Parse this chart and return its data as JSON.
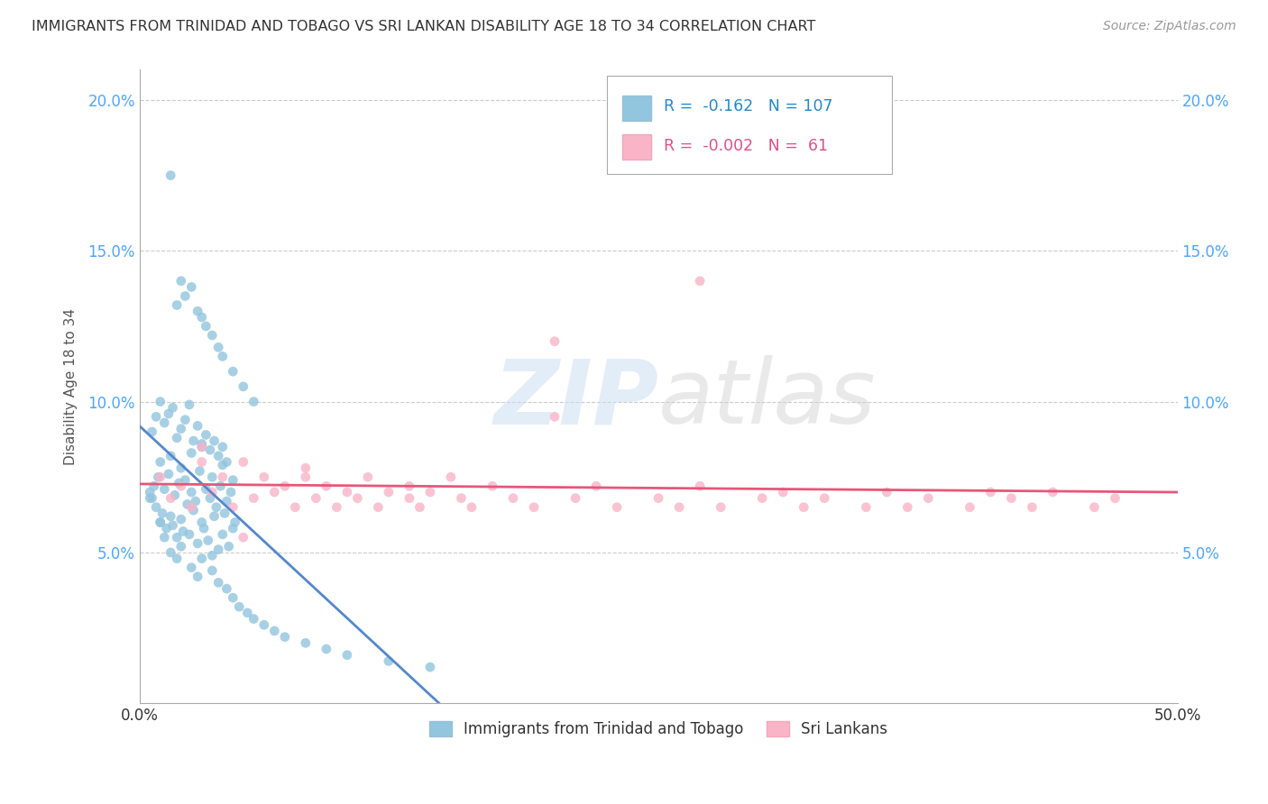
{
  "title": "IMMIGRANTS FROM TRINIDAD AND TOBAGO VS SRI LANKAN DISABILITY AGE 18 TO 34 CORRELATION CHART",
  "source": "Source: ZipAtlas.com",
  "ylabel": "Disability Age 18 to 34",
  "xlim": [
    0.0,
    0.5
  ],
  "ylim": [
    0.0,
    0.21
  ],
  "xticks": [
    0.0,
    0.5
  ],
  "xticklabels": [
    "0.0%",
    "50.0%"
  ],
  "yticks": [
    0.05,
    0.1,
    0.15,
    0.2
  ],
  "yticklabels": [
    "5.0%",
    "10.0%",
    "15.0%",
    "20.0%"
  ],
  "color_blue": "#92c5de",
  "color_pink": "#f9b4c8",
  "trend_blue_solid_color": "#5588cc",
  "trend_pink_solid_color": "#e8567a",
  "title_color": "#333333",
  "axis_label_color": "#333333",
  "tick_color_y": "#4da6ff",
  "legend_label1": "Immigrants from Trinidad and Tobago",
  "legend_label2": "Sri Lankans",
  "R_blue": -0.162,
  "N_blue": 107,
  "R_pink": -0.002,
  "N_pink": 61,
  "blue_x": [
    0.005,
    0.006,
    0.007,
    0.008,
    0.009,
    0.01,
    0.01,
    0.011,
    0.012,
    0.013,
    0.014,
    0.015,
    0.015,
    0.016,
    0.017,
    0.018,
    0.019,
    0.02,
    0.02,
    0.021,
    0.022,
    0.023,
    0.024,
    0.025,
    0.025,
    0.026,
    0.027,
    0.028,
    0.029,
    0.03,
    0.03,
    0.031,
    0.032,
    0.033,
    0.034,
    0.035,
    0.035,
    0.036,
    0.037,
    0.038,
    0.039,
    0.04,
    0.04,
    0.041,
    0.042,
    0.043,
    0.044,
    0.045,
    0.045,
    0.046,
    0.005,
    0.006,
    0.008,
    0.01,
    0.012,
    0.014,
    0.016,
    0.018,
    0.02,
    0.022,
    0.024,
    0.026,
    0.028,
    0.03,
    0.032,
    0.034,
    0.036,
    0.038,
    0.04,
    0.042,
    0.01,
    0.012,
    0.015,
    0.018,
    0.02,
    0.025,
    0.028,
    0.03,
    0.035,
    0.038,
    0.042,
    0.045,
    0.048,
    0.052,
    0.055,
    0.06,
    0.065,
    0.07,
    0.08,
    0.09,
    0.1,
    0.12,
    0.14,
    0.015,
    0.018,
    0.02,
    0.022,
    0.025,
    0.028,
    0.03,
    0.032,
    0.035,
    0.038,
    0.04,
    0.045,
    0.05,
    0.055
  ],
  "blue_y": [
    0.07,
    0.068,
    0.072,
    0.065,
    0.075,
    0.06,
    0.08,
    0.063,
    0.071,
    0.058,
    0.076,
    0.062,
    0.082,
    0.059,
    0.069,
    0.055,
    0.073,
    0.061,
    0.078,
    0.057,
    0.074,
    0.066,
    0.056,
    0.07,
    0.083,
    0.064,
    0.067,
    0.053,
    0.077,
    0.06,
    0.085,
    0.058,
    0.071,
    0.054,
    0.068,
    0.049,
    0.075,
    0.062,
    0.065,
    0.051,
    0.072,
    0.056,
    0.079,
    0.063,
    0.067,
    0.052,
    0.07,
    0.058,
    0.074,
    0.06,
    0.068,
    0.09,
    0.095,
    0.1,
    0.093,
    0.096,
    0.098,
    0.088,
    0.091,
    0.094,
    0.099,
    0.087,
    0.092,
    0.086,
    0.089,
    0.084,
    0.087,
    0.082,
    0.085,
    0.08,
    0.06,
    0.055,
    0.05,
    0.048,
    0.052,
    0.045,
    0.042,
    0.048,
    0.044,
    0.04,
    0.038,
    0.035,
    0.032,
    0.03,
    0.028,
    0.026,
    0.024,
    0.022,
    0.02,
    0.018,
    0.016,
    0.014,
    0.012,
    0.175,
    0.132,
    0.14,
    0.135,
    0.138,
    0.13,
    0.128,
    0.125,
    0.122,
    0.118,
    0.115,
    0.11,
    0.105,
    0.1
  ],
  "pink_x": [
    0.01,
    0.015,
    0.02,
    0.025,
    0.03,
    0.03,
    0.035,
    0.04,
    0.045,
    0.05,
    0.055,
    0.06,
    0.065,
    0.07,
    0.075,
    0.08,
    0.085,
    0.09,
    0.095,
    0.1,
    0.105,
    0.11,
    0.115,
    0.12,
    0.13,
    0.135,
    0.14,
    0.15,
    0.155,
    0.16,
    0.17,
    0.18,
    0.19,
    0.2,
    0.21,
    0.22,
    0.23,
    0.25,
    0.26,
    0.27,
    0.28,
    0.3,
    0.31,
    0.32,
    0.33,
    0.35,
    0.36,
    0.37,
    0.38,
    0.4,
    0.41,
    0.42,
    0.43,
    0.44,
    0.46,
    0.47,
    0.27,
    0.2,
    0.13,
    0.08,
    0.05
  ],
  "pink_y": [
    0.075,
    0.068,
    0.072,
    0.065,
    0.085,
    0.08,
    0.07,
    0.075,
    0.065,
    0.08,
    0.068,
    0.075,
    0.07,
    0.072,
    0.065,
    0.075,
    0.068,
    0.072,
    0.065,
    0.07,
    0.068,
    0.075,
    0.065,
    0.07,
    0.068,
    0.065,
    0.07,
    0.075,
    0.068,
    0.065,
    0.072,
    0.068,
    0.065,
    0.12,
    0.068,
    0.072,
    0.065,
    0.068,
    0.065,
    0.072,
    0.065,
    0.068,
    0.07,
    0.065,
    0.068,
    0.065,
    0.07,
    0.065,
    0.068,
    0.065,
    0.07,
    0.068,
    0.065,
    0.07,
    0.065,
    0.068,
    0.14,
    0.095,
    0.072,
    0.078,
    0.055
  ]
}
